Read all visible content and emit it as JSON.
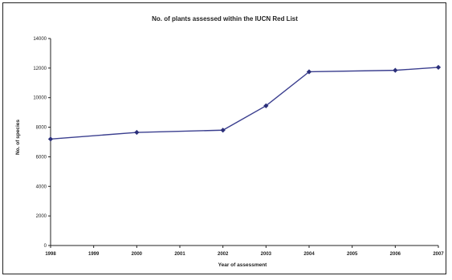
{
  "chart_data": {
    "type": "line",
    "title": "No. of plants assessed within the IUCN Red List",
    "xlabel": "Year of assessment",
    "ylabel": "No. of species",
    "categories": [
      "1998",
      "1999",
      "2000",
      "2001",
      "2002",
      "2003",
      "2004",
      "2005",
      "2006",
      "2007"
    ],
    "series": [
      {
        "x": [
          "1998",
          "2000",
          "2002",
          "2003",
          "2004",
          "2006",
          "2007"
        ],
        "values": [
          7200,
          7650,
          7800,
          9450,
          11750,
          11850,
          12050
        ]
      }
    ],
    "yticks": [
      "0",
      "2000",
      "4000",
      "6000",
      "8000",
      "10000",
      "12000",
      "14000"
    ],
    "ylim": [
      0,
      14000
    ],
    "grid": false,
    "legend": "none",
    "colors": {
      "line": "#3b3f8f",
      "marker": "#2b2f7a",
      "axis": "#222222"
    }
  }
}
